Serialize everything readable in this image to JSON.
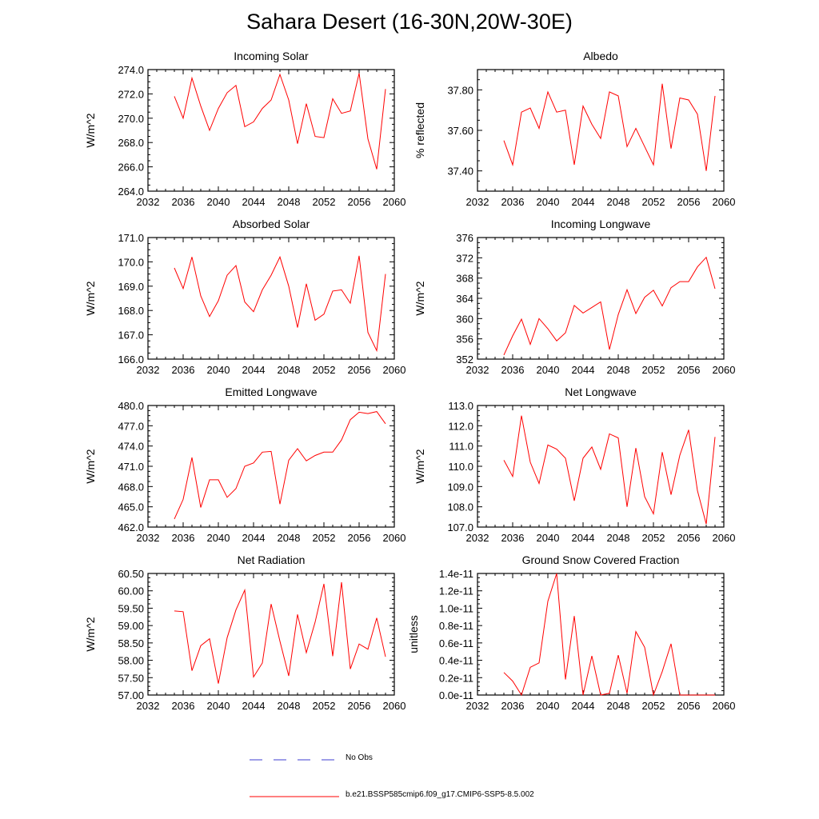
{
  "title": "Sahara Desert (16-30N,20W-30E)",
  "legend": [
    {
      "label": "No Obs",
      "color": "#3c3cd0",
      "style": "dashed"
    },
    {
      "label": "b.e21.BSSP585cmip6.f09_g17.CMIP6-SSP5-8.5.002",
      "color": "#ff0000",
      "style": "solid"
    }
  ],
  "series_color": "#ff0000",
  "chart_data": [
    {
      "type": "line",
      "title": "Incoming Solar",
      "ylabel": "W/m^2",
      "xlim": [
        2032,
        2060
      ],
      "ylim": [
        264.0,
        274.0
      ],
      "xticks": [
        2032,
        2036,
        2040,
        2044,
        2048,
        2052,
        2056,
        2060
      ],
      "yticks": [
        "264.0",
        "266.0",
        "268.0",
        "270.0",
        "272.0",
        "274.0"
      ],
      "x": [
        2035,
        2036,
        2037,
        2038,
        2039,
        2040,
        2041,
        2042,
        2043,
        2044,
        2045,
        2046,
        2047,
        2048,
        2049,
        2050,
        2051,
        2052,
        2053,
        2054,
        2055,
        2056,
        2057,
        2058,
        2059
      ],
      "series": [
        {
          "values": [
            271.8,
            270.0,
            273.3,
            271.0,
            269.0,
            270.8,
            272.1,
            272.7,
            269.3,
            269.7,
            270.8,
            271.5,
            273.6,
            271.5,
            267.9,
            271.2,
            268.5,
            268.4,
            271.6,
            270.4,
            270.6,
            273.7,
            268.3,
            265.8,
            272.4
          ]
        }
      ]
    },
    {
      "type": "line",
      "title": "Albedo",
      "ylabel": "% reflected",
      "xlim": [
        2032,
        2060
      ],
      "ylim": [
        37.3,
        37.9
      ],
      "xticks": [
        2032,
        2036,
        2040,
        2044,
        2048,
        2052,
        2056,
        2060
      ],
      "yticks": [
        "37.40",
        "37.60",
        "37.80"
      ],
      "x": [
        2035,
        2036,
        2037,
        2038,
        2039,
        2040,
        2041,
        2042,
        2043,
        2044,
        2045,
        2046,
        2047,
        2048,
        2049,
        2050,
        2051,
        2052,
        2053,
        2054,
        2055,
        2056,
        2057,
        2058,
        2059
      ],
      "series": [
        {
          "values": [
            37.55,
            37.43,
            37.69,
            37.71,
            37.61,
            37.79,
            37.69,
            37.7,
            37.43,
            37.72,
            37.63,
            37.56,
            37.79,
            37.77,
            37.52,
            37.61,
            37.52,
            37.43,
            37.83,
            37.51,
            37.76,
            37.75,
            37.68,
            37.4,
            37.77
          ]
        }
      ]
    },
    {
      "type": "line",
      "title": "Absorbed Solar",
      "ylabel": "W/m^2",
      "xlim": [
        2032,
        2060
      ],
      "ylim": [
        166.0,
        171.0
      ],
      "xticks": [
        2032,
        2036,
        2040,
        2044,
        2048,
        2052,
        2056,
        2060
      ],
      "yticks": [
        "166.0",
        "167.0",
        "168.0",
        "169.0",
        "170.0",
        "171.0"
      ],
      "x": [
        2035,
        2036,
        2037,
        2038,
        2039,
        2040,
        2041,
        2042,
        2043,
        2044,
        2045,
        2046,
        2047,
        2048,
        2049,
        2050,
        2051,
        2052,
        2053,
        2054,
        2055,
        2056,
        2057,
        2058,
        2059
      ],
      "series": [
        {
          "values": [
            169.75,
            168.9,
            170.2,
            168.6,
            167.75,
            168.4,
            169.45,
            169.85,
            168.35,
            167.95,
            168.85,
            169.45,
            170.2,
            169.0,
            167.3,
            169.1,
            167.6,
            167.85,
            168.8,
            168.85,
            168.3,
            170.25,
            167.1,
            166.35,
            169.5
          ]
        }
      ]
    },
    {
      "type": "line",
      "title": "Incoming Longwave",
      "ylabel": "W/m^2",
      "xlim": [
        2032,
        2060
      ],
      "ylim": [
        352,
        376
      ],
      "xticks": [
        2032,
        2036,
        2040,
        2044,
        2048,
        2052,
        2056,
        2060
      ],
      "yticks": [
        "352",
        "356",
        "360",
        "364",
        "368",
        "372",
        "376"
      ],
      "x": [
        2035,
        2036,
        2037,
        2038,
        2039,
        2040,
        2041,
        2042,
        2043,
        2044,
        2045,
        2046,
        2047,
        2048,
        2049,
        2050,
        2051,
        2052,
        2053,
        2054,
        2055,
        2056,
        2057,
        2058,
        2059
      ],
      "series": [
        {
          "values": [
            352.8,
            356.6,
            359.9,
            354.9,
            360.0,
            358.0,
            355.6,
            357.2,
            362.6,
            361.1,
            362.2,
            363.3,
            353.9,
            360.8,
            365.7,
            361.0,
            364.2,
            365.6,
            362.5,
            366.1,
            367.3,
            367.3,
            370.2,
            372.1,
            365.9
          ]
        }
      ]
    },
    {
      "type": "line",
      "title": "Emitted Longwave",
      "ylabel": "W/m^2",
      "xlim": [
        2032,
        2060
      ],
      "ylim": [
        462.0,
        480.0
      ],
      "xticks": [
        2032,
        2036,
        2040,
        2044,
        2048,
        2052,
        2056,
        2060
      ],
      "yticks": [
        "462.0",
        "465.0",
        "468.0",
        "471.0",
        "474.0",
        "477.0",
        "480.0"
      ],
      "x": [
        2035,
        2036,
        2037,
        2038,
        2039,
        2040,
        2041,
        2042,
        2043,
        2044,
        2045,
        2046,
        2047,
        2048,
        2049,
        2050,
        2051,
        2052,
        2053,
        2054,
        2055,
        2056,
        2057,
        2058,
        2059
      ],
      "series": [
        {
          "values": [
            463.2,
            466.1,
            472.3,
            464.9,
            469.0,
            469.0,
            466.4,
            467.7,
            471.0,
            471.5,
            473.1,
            473.2,
            465.4,
            471.9,
            473.6,
            471.8,
            472.6,
            473.1,
            473.1,
            474.9,
            477.9,
            479.0,
            478.8,
            479.1,
            477.3
          ]
        }
      ]
    },
    {
      "type": "line",
      "title": "Net Longwave",
      "ylabel": "W/m^2",
      "xlim": [
        2032,
        2060
      ],
      "ylim": [
        107.0,
        113.0
      ],
      "xticks": [
        2032,
        2036,
        2040,
        2044,
        2048,
        2052,
        2056,
        2060
      ],
      "yticks": [
        "107.0",
        "108.0",
        "109.0",
        "110.0",
        "111.0",
        "112.0",
        "113.0"
      ],
      "x": [
        2035,
        2036,
        2037,
        2038,
        2039,
        2040,
        2041,
        2042,
        2043,
        2044,
        2045,
        2046,
        2047,
        2048,
        2049,
        2050,
        2051,
        2052,
        2053,
        2054,
        2055,
        2056,
        2057,
        2058,
        2059
      ],
      "series": [
        {
          "values": [
            110.3,
            109.5,
            112.5,
            110.2,
            109.15,
            111.05,
            110.85,
            110.4,
            108.3,
            110.4,
            110.95,
            109.85,
            111.6,
            111.4,
            108.0,
            110.9,
            108.5,
            107.65,
            110.7,
            108.6,
            110.55,
            111.8,
            108.8,
            107.15,
            111.45
          ]
        }
      ]
    },
    {
      "type": "line",
      "title": "Net Radiation",
      "ylabel": "W/m^2",
      "xlim": [
        2032,
        2060
      ],
      "ylim": [
        57.0,
        60.5
      ],
      "xticks": [
        2032,
        2036,
        2040,
        2044,
        2048,
        2052,
        2056,
        2060
      ],
      "yticks": [
        "57.00",
        "57.50",
        "58.00",
        "58.50",
        "59.00",
        "59.50",
        "60.00",
        "60.50"
      ],
      "x": [
        2035,
        2036,
        2037,
        2038,
        2039,
        2040,
        2041,
        2042,
        2043,
        2044,
        2045,
        2046,
        2047,
        2048,
        2049,
        2050,
        2051,
        2052,
        2053,
        2054,
        2055,
        2056,
        2057,
        2058,
        2059
      ],
      "series": [
        {
          "values": [
            59.42,
            59.4,
            57.7,
            58.42,
            58.62,
            57.33,
            58.65,
            59.45,
            60.02,
            57.52,
            57.92,
            59.62,
            58.55,
            57.55,
            59.32,
            58.22,
            59.1,
            60.2,
            58.12,
            60.25,
            57.75,
            58.47,
            58.32,
            59.22,
            58.1
          ]
        }
      ]
    },
    {
      "type": "line",
      "title": "Ground Snow Covered Fraction",
      "ylabel": "unitless",
      "xlim": [
        2032,
        2060
      ],
      "ylim": [
        0,
        1.4e-11
      ],
      "xticks": [
        2032,
        2036,
        2040,
        2044,
        2048,
        2052,
        2056,
        2060
      ],
      "yticks": [
        "0.0e-11",
        "0.2e-11",
        "0.4e-11",
        "0.6e-11",
        "0.8e-11",
        "1.0e-11",
        "1.2e-11",
        "1.4e-11"
      ],
      "x": [
        2035,
        2036,
        2037,
        2038,
        2039,
        2040,
        2041,
        2042,
        2043,
        2044,
        2045,
        2046,
        2047,
        2048,
        2049,
        2050,
        2051,
        2052,
        2053,
        2054,
        2055,
        2056,
        2057,
        2058,
        2059
      ],
      "series": [
        {
          "values": [
            2.6e-12,
            1.6e-12,
            0.0,
            3.2e-12,
            3.7e-12,
            1.08e-11,
            1.4e-11,
            1.8e-12,
            9.1e-12,
            0.0,
            4.5e-12,
            0.0,
            2e-13,
            4.6e-12,
            2e-13,
            7.3e-12,
            5.5e-12,
            0.0,
            2.7e-12,
            5.9e-12,
            0.0,
            0.0,
            0.0,
            0.0,
            0.0
          ]
        }
      ]
    }
  ]
}
